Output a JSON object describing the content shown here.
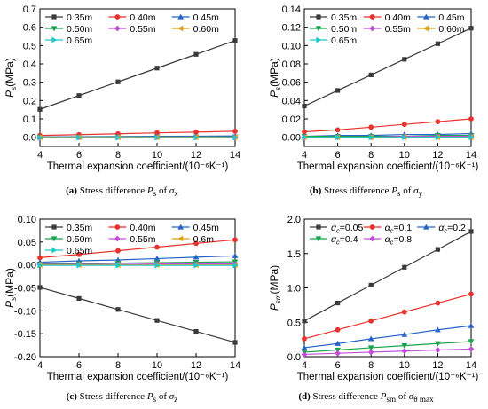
{
  "chart_data": [
    {
      "id": "a",
      "type": "line",
      "ylabel": "P_s(MPa)",
      "ylabel_main": "P",
      "ylabel_sub": "s",
      "ylabel_unit": "(MPa)",
      "xlabel": "Thermal expansion coefficient/(10⁻⁶K⁻¹)",
      "x": [
        4,
        6,
        8,
        10,
        12,
        14
      ],
      "xlim": [
        4,
        14
      ],
      "ylim": [
        -0.05,
        0.7
      ],
      "yticks": [
        0.0,
        0.1,
        0.2,
        0.3,
        0.4,
        0.5,
        0.6,
        0.7
      ],
      "ytick_labels": [
        "0.0",
        "0.1",
        "0.2",
        "0.3",
        "0.4",
        "0.5",
        "0.6",
        "0.7"
      ],
      "xticks": [
        4,
        6,
        8,
        10,
        12,
        14
      ],
      "series": [
        {
          "name": "0.35m",
          "color": "#3a3a3a",
          "marker": "square",
          "values": [
            0.152,
            0.227,
            0.302,
            0.377,
            0.452,
            0.527
          ]
        },
        {
          "name": "0.40m",
          "color": "#e8322d",
          "marker": "circle",
          "values": [
            0.01,
            0.014,
            0.019,
            0.024,
            0.028,
            0.033
          ]
        },
        {
          "name": "0.45m",
          "color": "#2563c8",
          "marker": "triangle-up",
          "values": [
            0.002,
            0.003,
            0.004,
            0.005,
            0.006,
            0.007
          ]
        },
        {
          "name": "0.50m",
          "color": "#16a34a",
          "marker": "triangle-down",
          "values": [
            0.001,
            0.001,
            0.002,
            0.002,
            0.002,
            0.003
          ]
        },
        {
          "name": "0.55m",
          "color": "#c04fd8",
          "marker": "diamond",
          "values": [
            0.0,
            0.0,
            0.001,
            0.001,
            0.001,
            0.001
          ]
        },
        {
          "name": "0.60m",
          "color": "#e0a010",
          "marker": "triangle-left",
          "values": [
            0.0,
            0.0,
            0.0,
            0.0,
            0.0,
            0.0
          ]
        },
        {
          "name": "0.65m",
          "color": "#1ec8c8",
          "marker": "triangle-right",
          "values": [
            -0.002,
            -0.002,
            -0.002,
            -0.002,
            -0.002,
            -0.002
          ]
        }
      ],
      "legend_cols": 3,
      "caption": {
        "label": "(a)",
        "text": "Stress difference",
        "sym": "P",
        "sub": "s",
        "of": "of",
        "target": "σ",
        "target_sub": "x"
      }
    },
    {
      "id": "b",
      "type": "line",
      "ylabel": "P_s(MPa)",
      "ylabel_main": "P",
      "ylabel_sub": "s",
      "ylabel_unit": "(MPa)",
      "xlabel": "Thermal expansion coefficient/(10⁻⁶K⁻¹)",
      "x": [
        4,
        6,
        8,
        10,
        12,
        14
      ],
      "xlim": [
        4,
        14
      ],
      "ylim": [
        -0.01,
        0.14
      ],
      "yticks": [
        0.0,
        0.02,
        0.04,
        0.06,
        0.08,
        0.1,
        0.12,
        0.14
      ],
      "ytick_labels": [
        "0.00",
        "0.02",
        "0.04",
        "0.06",
        "0.08",
        "0.10",
        "0.12",
        "0.14"
      ],
      "xticks": [
        4,
        6,
        8,
        10,
        12,
        14
      ],
      "series": [
        {
          "name": "0.35m",
          "color": "#3a3a3a",
          "marker": "square",
          "values": [
            0.034,
            0.051,
            0.068,
            0.085,
            0.102,
            0.119
          ]
        },
        {
          "name": "0.40m",
          "color": "#e8322d",
          "marker": "circle",
          "values": [
            0.006,
            0.008,
            0.011,
            0.014,
            0.017,
            0.02
          ]
        },
        {
          "name": "0.45m",
          "color": "#2563c8",
          "marker": "triangle-up",
          "values": [
            0.001,
            0.002,
            0.002,
            0.003,
            0.003,
            0.004
          ]
        },
        {
          "name": "0.50m",
          "color": "#16a34a",
          "marker": "triangle-down",
          "values": [
            0.001,
            0.001,
            0.001,
            0.001,
            0.002,
            0.002
          ]
        },
        {
          "name": "0.55m",
          "color": "#c04fd8",
          "marker": "diamond",
          "values": [
            0.0,
            0.0,
            0.0,
            0.001,
            0.001,
            0.001
          ]
        },
        {
          "name": "0.60m",
          "color": "#e0a010",
          "marker": "triangle-left",
          "values": [
            0.0,
            0.0,
            0.0,
            0.0,
            0.0,
            0.0
          ]
        },
        {
          "name": "0.65m",
          "color": "#1ec8c8",
          "marker": "triangle-right",
          "values": [
            0.0,
            0.0,
            0.0,
            0.0,
            0.0,
            0.0
          ]
        }
      ],
      "legend_cols": 3,
      "caption": {
        "label": "(b)",
        "text": "Stress difference",
        "sym": "P",
        "sub": "s",
        "of": "of",
        "target": "σ",
        "target_sub": "y"
      }
    },
    {
      "id": "c",
      "type": "line",
      "ylabel": "P_s(MPa)",
      "ylabel_main": "P",
      "ylabel_sub": "s",
      "ylabel_unit": "(MPa)",
      "xlabel": "Thermal expansion coefficient/(10⁻⁶K⁻¹)",
      "x": [
        4,
        6,
        8,
        10,
        12,
        14
      ],
      "xlim": [
        4,
        14
      ],
      "ylim": [
        -0.2,
        0.1
      ],
      "yticks": [
        -0.2,
        -0.15,
        -0.1,
        -0.05,
        0.0,
        0.05,
        0.1
      ],
      "ytick_labels": [
        "-0.20",
        "-0.15",
        "-0.10",
        "-0.05",
        "0.00",
        "0.05",
        "0.10"
      ],
      "xticks": [
        4,
        6,
        8,
        10,
        12,
        14
      ],
      "series": [
        {
          "name": "0.35m",
          "color": "#3a3a3a",
          "marker": "square",
          "values": [
            -0.049,
            -0.073,
            -0.097,
            -0.121,
            -0.145,
            -0.169
          ]
        },
        {
          "name": "0.40m",
          "color": "#e8322d",
          "marker": "circle",
          "values": [
            0.016,
            0.023,
            0.031,
            0.039,
            0.047,
            0.055
          ]
        },
        {
          "name": "0.45m",
          "color": "#2563c8",
          "marker": "triangle-up",
          "values": [
            0.006,
            0.009,
            0.011,
            0.014,
            0.017,
            0.02
          ]
        },
        {
          "name": "0.50m",
          "color": "#16a34a",
          "marker": "triangle-down",
          "values": [
            0.002,
            0.003,
            0.004,
            0.005,
            0.006,
            0.007
          ]
        },
        {
          "name": "0.55m",
          "color": "#c04fd8",
          "marker": "diamond",
          "values": [
            0.001,
            0.001,
            0.001,
            0.002,
            0.002,
            0.002
          ]
        },
        {
          "name": "0.6m",
          "color": "#e0a010",
          "marker": "triangle-left",
          "values": [
            0.0,
            0.0,
            0.0,
            0.0,
            0.0,
            0.0
          ]
        },
        {
          "name": "0.65m",
          "color": "#1ec8c8",
          "marker": "triangle-right",
          "values": [
            -0.001,
            -0.001,
            -0.001,
            -0.001,
            -0.001,
            -0.001
          ]
        }
      ],
      "legend_cols": 3,
      "caption": {
        "label": "(c)",
        "text": "Stress difference",
        "sym": "P",
        "sub": "s",
        "of": "of",
        "target": "σ",
        "target_sub": "z"
      }
    },
    {
      "id": "d",
      "type": "line",
      "ylabel": "P_sm(MPa)",
      "ylabel_main": "P",
      "ylabel_sub": "sm",
      "ylabel_unit": "(MPa)",
      "xlabel": "Thermal expansion coefficient/(10⁻⁶K⁻¹)",
      "x": [
        4,
        6,
        8,
        10,
        12,
        14
      ],
      "xlim": [
        4,
        14
      ],
      "ylim": [
        0,
        2.0
      ],
      "yticks": [
        0.0,
        0.5,
        1.0,
        1.5,
        2.0
      ],
      "ytick_labels": [
        "0.0",
        "0.5",
        "1.0",
        "1.5",
        "2.0"
      ],
      "xticks": [
        4,
        6,
        8,
        10,
        12,
        14
      ],
      "series": [
        {
          "name": "αc=0.05",
          "sym": "α",
          "sub": "c",
          "val": "=0.05",
          "color": "#3a3a3a",
          "marker": "square",
          "values": [
            0.52,
            0.78,
            1.04,
            1.3,
            1.56,
            1.82
          ]
        },
        {
          "name": "αc=0.1",
          "sym": "α",
          "sub": "c",
          "val": "=0.1",
          "color": "#e8322d",
          "marker": "circle",
          "values": [
            0.26,
            0.39,
            0.52,
            0.65,
            0.78,
            0.91
          ]
        },
        {
          "name": "αc=0.2",
          "sym": "α",
          "sub": "c",
          "val": "=0.2",
          "color": "#2563c8",
          "marker": "triangle-up",
          "values": [
            0.13,
            0.19,
            0.26,
            0.32,
            0.39,
            0.45
          ]
        },
        {
          "name": "αc=0.4",
          "sym": "α",
          "sub": "c",
          "val": "=0.4",
          "color": "#16a34a",
          "marker": "triangle-down",
          "values": [
            0.065,
            0.097,
            0.13,
            0.16,
            0.19,
            0.22
          ]
        },
        {
          "name": "αc=0.8",
          "sym": "α",
          "sub": "c",
          "val": "=0.8",
          "color": "#c04fd8",
          "marker": "diamond",
          "values": [
            0.033,
            0.049,
            0.065,
            0.081,
            0.097,
            0.11
          ]
        }
      ],
      "legend_cols": 3,
      "caption": {
        "label": "(d)",
        "text": "Stress difference",
        "sym": "P",
        "sub": "sm",
        "of": "of",
        "target": "σ",
        "target_sub": "θ max"
      }
    }
  ]
}
